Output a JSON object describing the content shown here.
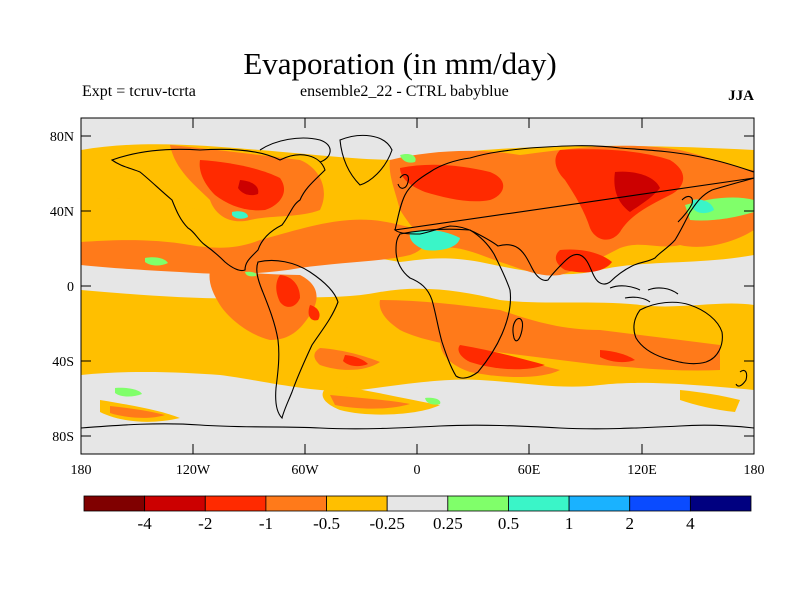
{
  "title": "Evaporation (in mm/day)",
  "subtitle_left": "Expt = tcruv-tcrta",
  "subtitle_center": "ensemble2_22 - CTRL babyblue",
  "season": "JJA",
  "y_ticks": [
    "80N",
    "40N",
    "0",
    "40S",
    "80S"
  ],
  "x_ticks": [
    "180",
    "120W",
    "60W",
    "0",
    "60E",
    "120E",
    "180"
  ],
  "colorbar": {
    "colors": [
      "#800000",
      "#cc0000",
      "#ff2a00",
      "#ff7a1a",
      "#ffbf00",
      "#e6e6e6",
      "#80ff6a",
      "#3af5c8",
      "#1ab2ff",
      "#0a4bff",
      "#000080"
    ],
    "labels": [
      "-4",
      "-2",
      "-1",
      "-0.5",
      "-0.25",
      "0.25",
      "0.5",
      "1",
      "2",
      "4"
    ]
  },
  "chart_data": {
    "type": "heatmap",
    "title": "Evaporation (in mm/day)",
    "projection": "cylindrical equidistant",
    "lon_range": [
      -180,
      180
    ],
    "lat_range": [
      -90,
      90
    ],
    "levels": [
      -4,
      -2,
      -1,
      -0.5,
      -0.25,
      0.25,
      0.5,
      1,
      2,
      4
    ],
    "features": [
      {
        "region": "North Pacific",
        "value": -0.25
      },
      {
        "region": "North Atlantic / Europe",
        "value": -1
      },
      {
        "region": "Siberia / East Asia",
        "value": -1
      },
      {
        "region": "Equatorial Atlantic",
        "value": -1
      },
      {
        "region": "Southern Indian Ocean",
        "value": -0.5
      },
      {
        "region": "Sahara / North Africa",
        "value": 1
      },
      {
        "region": "Northwest Pacific off Japan",
        "value": 1
      },
      {
        "region": "Eastern tropical Pacific",
        "value": 0.5
      },
      {
        "region": "South Pacific",
        "value": 0.5
      },
      {
        "region": "South Atlantic",
        "value": 0.5
      }
    ]
  }
}
